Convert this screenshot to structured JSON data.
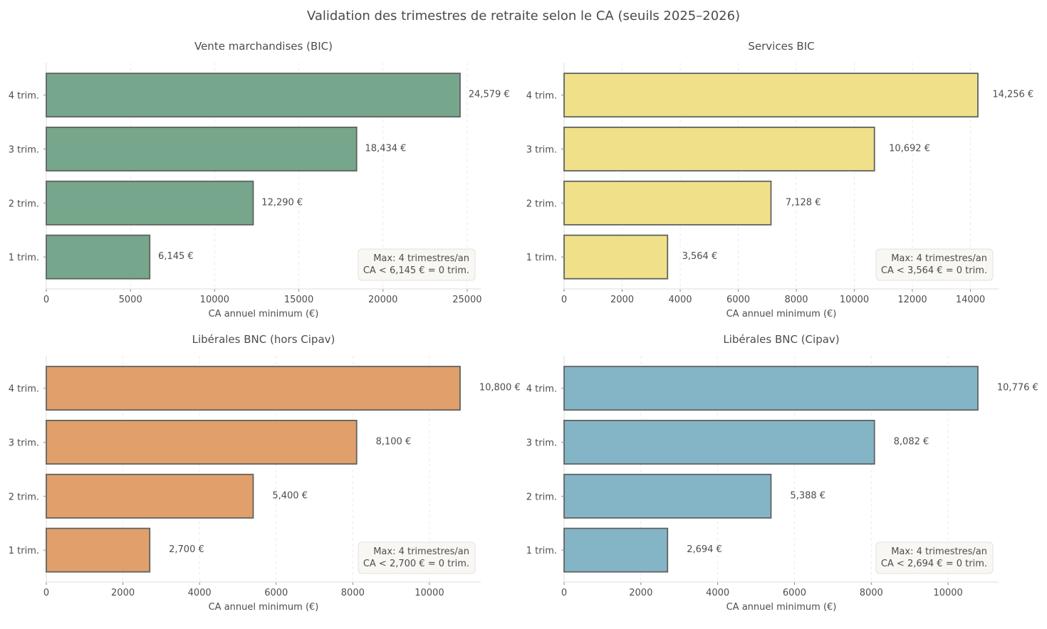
{
  "title": "Validation des trimestres de retraite selon le CA (seuils 2025–2026)",
  "chart_data": [
    {
      "type": "bar",
      "orientation": "horizontal",
      "title": "Vente marchandises (BIC)",
      "categories": [
        "1 trim.",
        "2 trim.",
        "3 trim.",
        "4 trim."
      ],
      "values": [
        6145,
        12290,
        18434,
        24579
      ],
      "value_labels": [
        "6,145 €",
        "12,290 €",
        "18,434 €",
        "24,579 €"
      ],
      "xlabel": "CA annuel minimum (€)",
      "xlim": [
        0,
        25808
      ],
      "xticks": [
        0,
        5000,
        10000,
        15000,
        20000,
        25000
      ],
      "color": "#76a68b",
      "annotation": [
        "Max: 4 trimestres/an",
        "CA < 6,145 € = 0 trim."
      ],
      "grid": "x dashed"
    },
    {
      "type": "bar",
      "orientation": "horizontal",
      "title": "Services BIC",
      "categories": [
        "1 trim.",
        "2 trim.",
        "3 trim.",
        "4 trim."
      ],
      "values": [
        3564,
        7128,
        10692,
        14256
      ],
      "value_labels": [
        "3,564 €",
        "7,128 €",
        "10,692 €",
        "14,256 €"
      ],
      "xlabel": "CA annuel minimum (€)",
      "xlim": [
        0,
        14969
      ],
      "xticks": [
        0,
        2000,
        4000,
        6000,
        8000,
        10000,
        12000,
        14000
      ],
      "color": "#f0e08a",
      "annotation": [
        "Max: 4 trimestres/an",
        "CA < 3,564 € = 0 trim."
      ],
      "grid": "x dashed"
    },
    {
      "type": "bar",
      "orientation": "horizontal",
      "title": "Libérales BNC (hors Cipav)",
      "categories": [
        "1 trim.",
        "2 trim.",
        "3 trim.",
        "4 trim."
      ],
      "values": [
        2700,
        5400,
        8100,
        10800
      ],
      "value_labels": [
        "2,700 €",
        "5,400 €",
        "8,100 €",
        "10,800 €"
      ],
      "xlabel": "CA annuel minimum (€)",
      "xlim": [
        0,
        11340
      ],
      "xticks": [
        0,
        2000,
        4000,
        6000,
        8000,
        10000
      ],
      "color": "#e09f6b",
      "annotation": [
        "Max: 4 trimestres/an",
        "CA < 2,700 € = 0 trim."
      ],
      "grid": "x dashed"
    },
    {
      "type": "bar",
      "orientation": "horizontal",
      "title": "Libérales BNC (Cipav)",
      "categories": [
        "1 trim.",
        "2 trim.",
        "3 trim.",
        "4 trim."
      ],
      "values": [
        2694,
        5388,
        8082,
        10776
      ],
      "value_labels": [
        "2,694 €",
        "5,388 €",
        "8,082 €",
        "10,776 €"
      ],
      "xlabel": "CA annuel minimum (€)",
      "xlim": [
        0,
        11315
      ],
      "xticks": [
        0,
        2000,
        4000,
        6000,
        8000,
        10000
      ],
      "color": "#84b5c7",
      "annotation": [
        "Max: 4 trimestres/an",
        "CA < 2,694 € = 0 trim."
      ],
      "grid": "x dashed"
    }
  ]
}
